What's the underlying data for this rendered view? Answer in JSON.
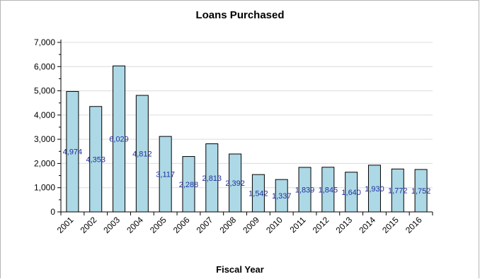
{
  "chart_data": {
    "type": "bar",
    "title": "Loans Purchased",
    "xlabel": "Fiscal Year",
    "ylabel": "",
    "categories": [
      "2001",
      "2002",
      "2003",
      "2004",
      "2005",
      "2006",
      "2007",
      "2008",
      "2009",
      "2010",
      "2011",
      "2012",
      "2013",
      "2014",
      "2015",
      "2016"
    ],
    "values": [
      4974,
      4353,
      6029,
      4812,
      3117,
      2288,
      2813,
      2392,
      1542,
      1337,
      1839,
      1845,
      1640,
      1930,
      1772,
      1752
    ],
    "data_labels": [
      "4,974",
      "4,353",
      "6,029",
      "4,812",
      "3,117",
      "2,288",
      "2,813",
      "2,392",
      "1,542",
      "1,337",
      "1,839",
      "1,845",
      "1,640",
      "1,930",
      "1,772",
      "1,752"
    ],
    "y_ticks": [
      "0",
      "1,000",
      "2,000",
      "3,000",
      "4,000",
      "5,000",
      "6,000",
      "7,000"
    ],
    "ylim": [
      0,
      7000
    ],
    "grid": true,
    "bar_color": "#add8e6",
    "bar_edge_color": "#000000",
    "label_color": "#1f2f9e",
    "legend": "none"
  }
}
